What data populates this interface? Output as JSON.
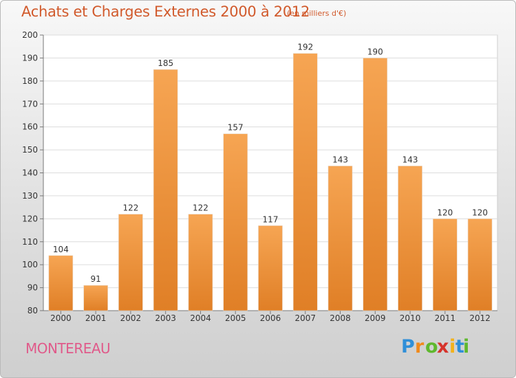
{
  "header": {
    "title": "Achats et Charges Externes 2000 à 2012",
    "subtitle": "(en milliers d'€)"
  },
  "footer": {
    "city": "MONTEREAU",
    "brand_letters": [
      {
        "char": "P",
        "color": "#2f8fd8"
      },
      {
        "char": "r",
        "color": "#f08a1c"
      },
      {
        "char": "o",
        "color": "#5fb82e"
      },
      {
        "char": "x",
        "color": "#d6332b"
      },
      {
        "char": "i",
        "color": "#f2b21c"
      },
      {
        "char": "t",
        "color": "#2f8fd8"
      },
      {
        "char": "i",
        "color": "#5fb82e"
      }
    ]
  },
  "colors": {
    "bar_light": "#f6a553",
    "bar_dark": "#e07f26",
    "text": "#333333",
    "title": "#d15a2c",
    "city": "#e05a8a"
  },
  "chart_data": {
    "type": "bar",
    "title": "Achats et Charges Externes 2000 à 2012",
    "subtitle": "(en milliers d'€)",
    "categories": [
      "2000",
      "2001",
      "2002",
      "2003",
      "2004",
      "2005",
      "2006",
      "2007",
      "2008",
      "2009",
      "2010",
      "2011",
      "2012"
    ],
    "values": [
      104,
      91,
      122,
      185,
      122,
      157,
      117,
      192,
      143,
      190,
      143,
      120,
      120
    ],
    "ylim": [
      80,
      200
    ],
    "yticks": [
      80,
      90,
      100,
      110,
      120,
      130,
      140,
      150,
      160,
      170,
      180,
      190,
      200
    ],
    "grid": true,
    "xlabel": "",
    "ylabel": ""
  }
}
